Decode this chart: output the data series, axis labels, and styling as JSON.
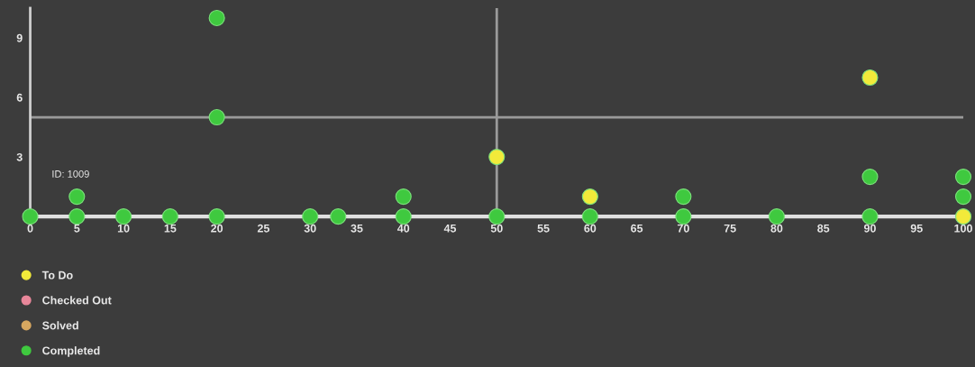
{
  "chart_data": {
    "type": "scatter",
    "xlim": [
      0,
      100
    ],
    "xticks": [
      0,
      5,
      10,
      15,
      20,
      25,
      30,
      35,
      40,
      45,
      50,
      55,
      60,
      65,
      70,
      75,
      80,
      85,
      90,
      95,
      100
    ],
    "ylim": [
      0,
      10.5
    ],
    "yticks": [
      3,
      6,
      9
    ],
    "series": [
      {
        "name": "To Do",
        "color": "#f2ea3a",
        "x": [
          50,
          60,
          90,
          100
        ],
        "values": [
          3,
          1,
          7,
          0
        ]
      },
      {
        "name": "Checked Out",
        "color": "#e8879a"
      },
      {
        "name": "Solved",
        "color": "#d8a860"
      },
      {
        "name": "Completed",
        "color": "#3fc93f",
        "x": [
          0,
          5,
          5,
          10,
          15,
          20,
          20,
          20,
          30,
          33,
          40,
          40,
          50,
          60,
          70,
          70,
          80,
          90,
          90,
          100,
          100
        ],
        "values": [
          0,
          0,
          1,
          0,
          0,
          0,
          5,
          10,
          0,
          0,
          0,
          1,
          0,
          0,
          0,
          1,
          0,
          0,
          2,
          1,
          2
        ]
      }
    ],
    "ref_lines": [
      {
        "axis": "x",
        "value": 50,
        "color": "#9a9a9a"
      },
      {
        "axis": "y",
        "value": 5,
        "color": "#9a9a9a"
      }
    ],
    "annotations": [
      "ID: 1009"
    ],
    "marker": "circle",
    "grid": false,
    "legend": "bottom left"
  }
}
